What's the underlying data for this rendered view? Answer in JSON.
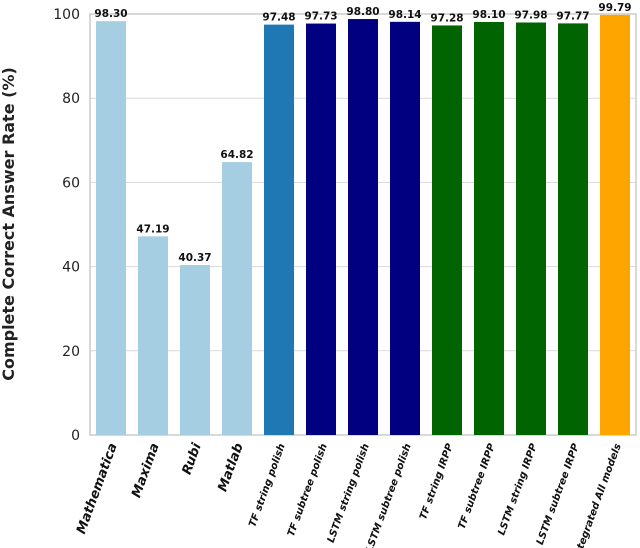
{
  "chart_data": {
    "type": "bar",
    "title": "",
    "xlabel": "",
    "ylabel": "Complete Correct Answer Rate (%)",
    "ylim": [
      0,
      100
    ],
    "yticks": [
      0,
      20,
      40,
      60,
      80,
      100
    ],
    "grid": true,
    "categories": [
      "Mathematica",
      "Maxima",
      "Rubi",
      "Matlab",
      "TF string polish",
      "TF subtree polish",
      "LSTM string polish",
      "LSTM subtree polish",
      "TF string IRPP",
      "TF subtree IRPP",
      "LSTM string IRPP",
      "LSTM subtree IRPP",
      "Integrated All models"
    ],
    "values": [
      98.3,
      47.19,
      40.37,
      64.82,
      97.48,
      97.73,
      98.8,
      98.14,
      97.28,
      98.1,
      97.98,
      97.77,
      99.79
    ],
    "value_labels": [
      "98.30",
      "47.19",
      "40.37",
      "64.82",
      "97.48",
      "97.73",
      "98.80",
      "98.14",
      "97.28",
      "98.10",
      "97.98",
      "97.77",
      "99.79"
    ],
    "colors": [
      "#a6cee3",
      "#a6cee3",
      "#a6cee3",
      "#a6cee3",
      "#1f78b4",
      "#000080",
      "#000080",
      "#000080",
      "#006400",
      "#006400",
      "#006400",
      "#006400",
      "#ffa500"
    ]
  }
}
